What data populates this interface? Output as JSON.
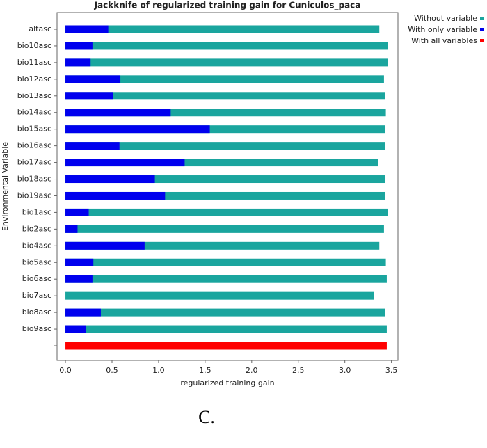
{
  "chart_data": {
    "type": "bar",
    "orientation": "horizontal",
    "title": "Jackknife of regularized training gain for Cuniculos_paca",
    "x_label": "regularized training gain",
    "y_label": "Environmental Variable",
    "categories": [
      "altasc",
      "bio10asc",
      "bio11asc",
      "bio12asc",
      "bio13asc",
      "bio14asc",
      "bio15asc",
      "bio16asc",
      "bio17asc",
      "bio18asc",
      "bio19asc",
      "bio1asc",
      "bio2asc",
      "bio4asc",
      "bio5asc",
      "bio6asc",
      "bio7asc",
      "bio8asc",
      "bio9asc",
      null
    ],
    "series": [
      {
        "name": "Without variable",
        "color": "#1aa59e",
        "values": [
          3.37,
          3.46,
          3.46,
          3.42,
          3.43,
          3.44,
          3.43,
          3.43,
          3.36,
          3.43,
          3.43,
          3.46,
          3.42,
          3.37,
          3.44,
          3.45,
          3.31,
          3.43,
          3.45,
          null
        ]
      },
      {
        "name": "With only variable",
        "color": "#0000ee",
        "values": [
          0.46,
          0.29,
          0.27,
          0.59,
          0.51,
          1.13,
          1.55,
          0.58,
          1.28,
          0.96,
          1.07,
          0.25,
          0.13,
          0.85,
          0.3,
          0.29,
          0,
          0.38,
          0.22,
          null
        ]
      },
      {
        "name": "With all variables",
        "color": "#ff0000",
        "values": [
          null,
          null,
          null,
          null,
          null,
          null,
          null,
          null,
          null,
          null,
          null,
          null,
          null,
          null,
          null,
          null,
          null,
          null,
          null,
          3.45
        ]
      }
    ],
    "xlim": [
      -0.09,
      3.57
    ],
    "xticks": [
      {
        "value": 0,
        "label": "0.0"
      },
      0.5,
      {
        "value": 1,
        "label": "1.0"
      },
      1.5,
      {
        "value": 2,
        "label": "2.0"
      },
      2.5,
      {
        "value": 3,
        "label": "3.0"
      },
      3.5
    ],
    "legend": "right",
    "caption": "C."
  }
}
